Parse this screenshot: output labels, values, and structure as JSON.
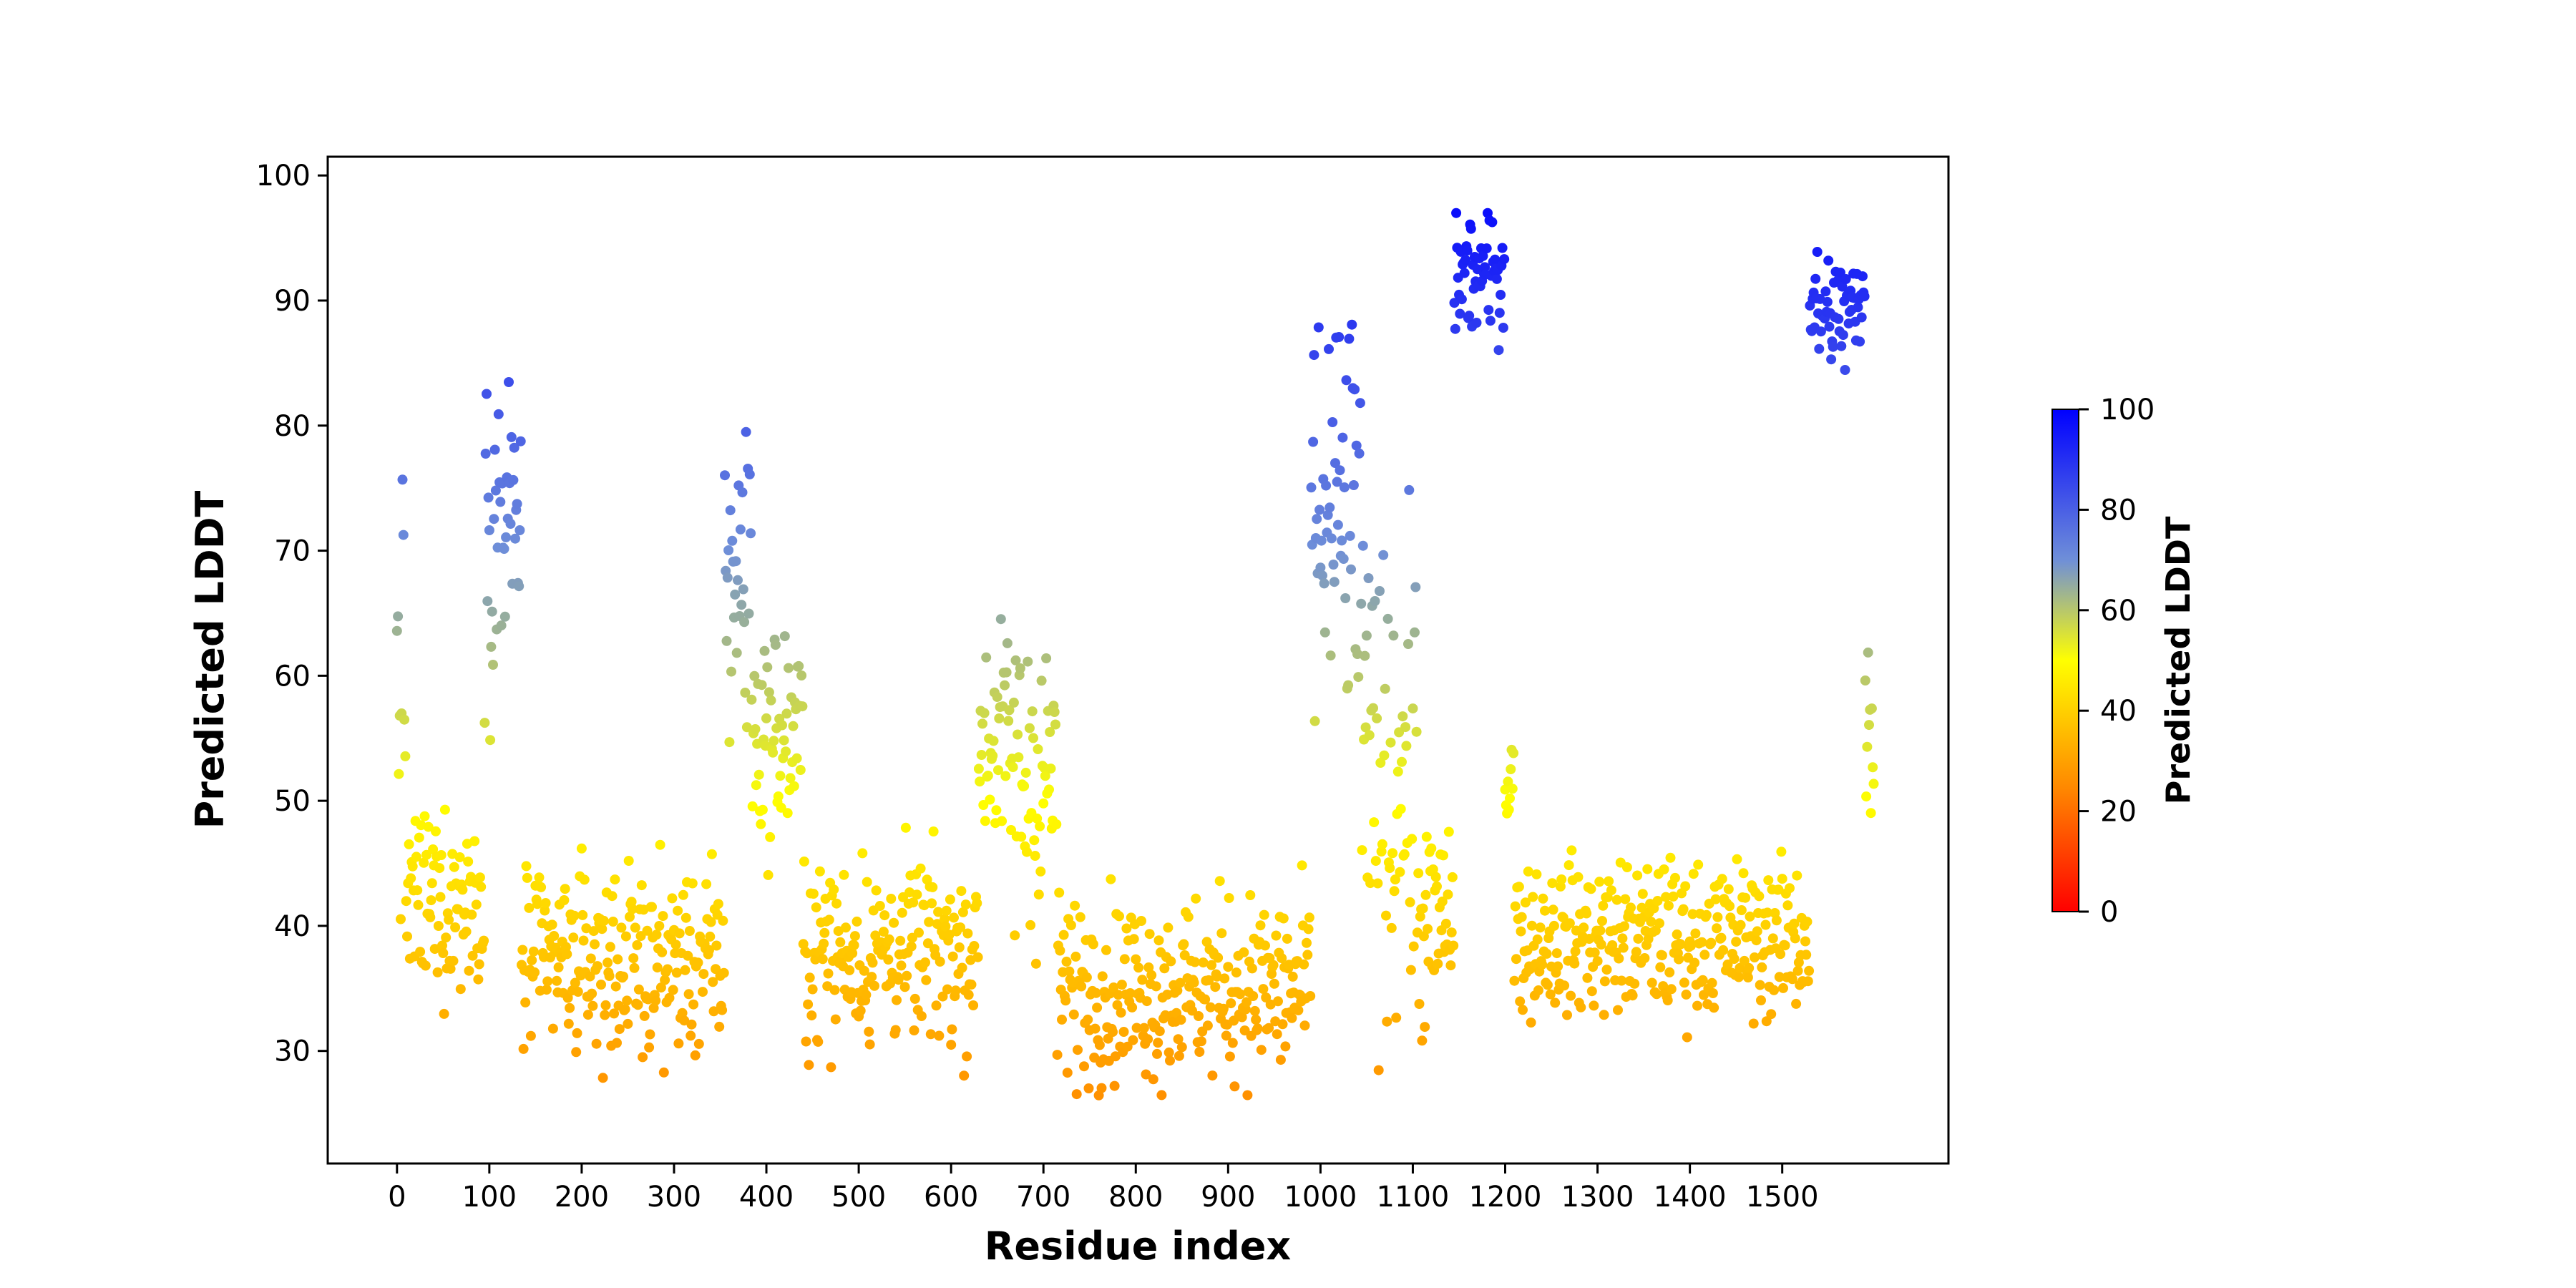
{
  "chart_data": {
    "type": "scatter",
    "title": "",
    "xlabel": "Residue index",
    "ylabel": "Predicted LDDT",
    "xlim": [
      -75,
      1680
    ],
    "ylim": [
      21,
      101.5
    ],
    "xticks": [
      0,
      100,
      200,
      300,
      400,
      500,
      600,
      700,
      800,
      900,
      1000,
      1100,
      1200,
      1300,
      1400,
      1500
    ],
    "yticks": [
      30,
      40,
      50,
      60,
      70,
      80,
      90,
      100
    ],
    "grid": false,
    "point_count": 1600,
    "colorbar": {
      "label": "Predicted LDDT",
      "range": [
        0,
        100
      ],
      "ticks": [
        0,
        20,
        40,
        60,
        80,
        100
      ],
      "colors": [
        {
          "value": 0,
          "color": "#ff0000"
        },
        {
          "value": 25,
          "color": "#ff8a00"
        },
        {
          "value": 50,
          "color": "#ffff00"
        },
        {
          "value": 70,
          "color": "#6f8fd8"
        },
        {
          "value": 100,
          "color": "#0000ff"
        }
      ]
    },
    "profile": [
      {
        "start": 0,
        "end": 10,
        "mean": 58,
        "spread": 14
      },
      {
        "start": 10,
        "end": 95,
        "mean": 42,
        "spread": 6
      },
      {
        "start": 95,
        "end": 135,
        "mean": 72,
        "spread": 10
      },
      {
        "start": 135,
        "end": 355,
        "mean": 37,
        "spread": 6
      },
      {
        "start": 355,
        "end": 385,
        "mean": 68,
        "spread": 12
      },
      {
        "start": 385,
        "end": 440,
        "mean": 55,
        "spread": 7
      },
      {
        "start": 440,
        "end": 630,
        "mean": 38,
        "spread": 6
      },
      {
        "start": 630,
        "end": 660,
        "mean": 55,
        "spread": 7
      },
      {
        "start": 660,
        "end": 715,
        "mean": 52,
        "spread": 11
      },
      {
        "start": 715,
        "end": 990,
        "mean": 35,
        "spread": 6
      },
      {
        "start": 990,
        "end": 1045,
        "mean": 72,
        "spread": 15
      },
      {
        "start": 1045,
        "end": 1105,
        "mean": 52,
        "spread": 15
      },
      {
        "start": 1105,
        "end": 1145,
        "mean": 40,
        "spread": 7
      },
      {
        "start": 1145,
        "end": 1200,
        "mean": 92,
        "spread": 4
      },
      {
        "start": 1200,
        "end": 1210,
        "mean": 52,
        "spread": 4
      },
      {
        "start": 1210,
        "end": 1530,
        "mean": 39,
        "spread": 5
      },
      {
        "start": 1530,
        "end": 1590,
        "mean": 89,
        "spread": 4
      },
      {
        "start": 1590,
        "end": 1600,
        "mean": 60,
        "spread": 12
      }
    ]
  }
}
